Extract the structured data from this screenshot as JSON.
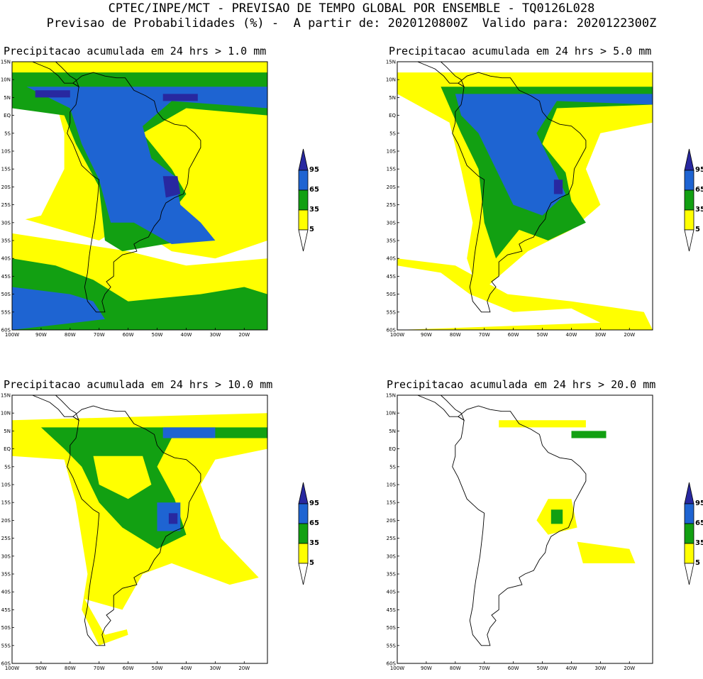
{
  "header": {
    "line1": "CPTEC/INPE/MCT - PREVISAO DE TEMPO GLOBAL POR ENSEMBLE - TQ0126L028",
    "line2": "Previsao de Probabilidades (%) -  A partir de: 2020120800Z  Valido para: 2020122300Z"
  },
  "colors": {
    "yellow": "#ffff00",
    "green": "#12a012",
    "blue": "#1e64d2",
    "navy": "#2828a0",
    "white": "#ffffff",
    "outline": "#000000"
  },
  "axes": {
    "lat_labels": [
      "15N",
      "10N",
      "5N",
      "EQ",
      "5S",
      "10S",
      "15S",
      "20S",
      "25S",
      "30S",
      "35S",
      "40S",
      "45S",
      "50S",
      "55S",
      "60S"
    ],
    "lon_labels": [
      "100W",
      "90W",
      "80W",
      "70W",
      "60W",
      "50W",
      "40W",
      "30W",
      "20W"
    ]
  },
  "colorbar": {
    "labels": [
      "95",
      "65",
      "35",
      "5"
    ],
    "colors": [
      "#2828a0",
      "#1e64d2",
      "#12a012",
      "#ffff00",
      "#ffffff"
    ]
  },
  "panels": [
    {
      "id": "p1",
      "title": "Precipitacao acumulada em 24 hrs > 1.0 mm"
    },
    {
      "id": "p2",
      "title": "Precipitacao acumulada em 24 hrs > 5.0 mm"
    },
    {
      "id": "p3",
      "title": "Precipitacao acumulada em 24 hrs > 10.0 mm"
    },
    {
      "id": "p4",
      "title": "Precipitacao acumulada em 24 hrs > 20.0 mm"
    }
  ]
}
